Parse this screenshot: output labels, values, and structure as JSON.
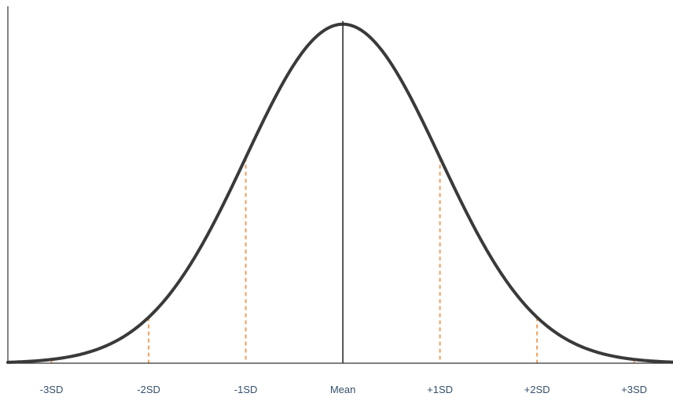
{
  "chart_data": {
    "type": "line",
    "title": "",
    "xlabel": "",
    "ylabel": "",
    "grid": false,
    "xlim": [
      -3.45,
      3.4
    ],
    "ylim": [
      0,
      0.42
    ],
    "tick_labels": [
      {
        "x": -3,
        "label": "-3SD"
      },
      {
        "x": -2,
        "label": "-2SD"
      },
      {
        "x": -1,
        "label": "-1SD"
      },
      {
        "x": 0,
        "label": "Mean"
      },
      {
        "x": 1,
        "label": "+1SD"
      },
      {
        "x": 2,
        "label": "+2SD"
      },
      {
        "x": 3,
        "label": "+3SD"
      }
    ],
    "series": [
      {
        "function": "normal_pdf",
        "mean": 0,
        "sd": 1
      }
    ],
    "sd_markers": [
      -3,
      -2,
      -1,
      1,
      2,
      3
    ],
    "mean_line_x": 0,
    "colors": {
      "curve": "#3a3a3a",
      "mean_line": "#2e2e2e",
      "markers": "#f0a060",
      "axis": "#333333",
      "tick_text": "#35506b"
    }
  }
}
